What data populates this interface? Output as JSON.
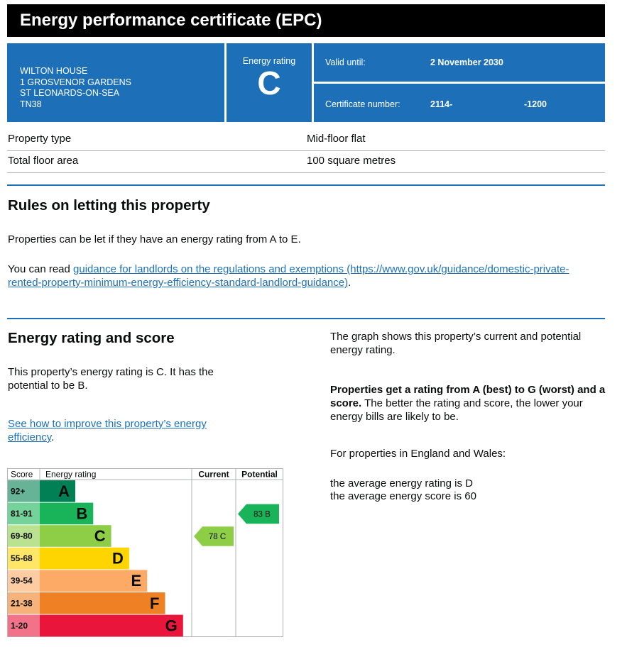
{
  "header": {
    "title": "Energy performance certificate (EPC)"
  },
  "address": {
    "line1": "WILTON HOUSE",
    "line2": "1 GROSVENOR GARDENS",
    "line3": "ST LEONARDS-ON-SEA",
    "line4": "TN38"
  },
  "energy_rating": {
    "label": "Energy rating",
    "value": "C"
  },
  "valid_until": {
    "label": "Valid until:",
    "value": "2 November 2030"
  },
  "certificate": {
    "label": "Certificate number:",
    "value_part1": "2114-",
    "value_part2": "-1200"
  },
  "property": {
    "type_label": "Property type",
    "type_value": "Mid-floor flat",
    "area_label": "Total floor area",
    "area_value": "100 square metres"
  },
  "rules": {
    "heading": "Rules on letting this property",
    "para1": "Properties can be let if they have an energy rating from A to E.",
    "para2_prefix": "You can read ",
    "link": "guidance for landlords on the regulations and exemptions (https://www.gov.uk/guidance/domestic-private-rented-property-minimum-energy-efficiency-standard-landlord-guidance)",
    "para2_suffix": "."
  },
  "rating_section": {
    "heading": "Energy rating and score",
    "para1": "This property’s energy rating is C. It has the potential to be B.",
    "link": "See how to improve this property’s energy efficiency",
    "link_suffix": "."
  },
  "right_col": {
    "para1": "The graph shows this property’s current and potential energy rating.",
    "para2_bold": "Properties get a rating from A (best) to G (worst) and a score.",
    "para2_rest": " The better the rating and score, the lower your energy bills are likely to be.",
    "para3": "For properties in England and Wales:",
    "para4_line1": "the average energy rating is D",
    "para4_line2": "the average energy score is 60"
  },
  "chart_data": {
    "type": "bar",
    "header_score": "Score",
    "header_rating": "Energy rating",
    "header_current": "Current",
    "header_potential": "Potential",
    "bands": [
      {
        "score": "92+",
        "letter": "A",
        "color": "#008054",
        "score_bg": "#66b398"
      },
      {
        "score": "81-91",
        "letter": "B",
        "color": "#19b459",
        "score_bg": "#75d29b"
      },
      {
        "score": "69-80",
        "letter": "C",
        "color": "#8dce46",
        "score_bg": "#bbe290"
      },
      {
        "score": "55-68",
        "letter": "D",
        "color": "#ffd500",
        "score_bg": "#ffe666"
      },
      {
        "score": "39-54",
        "letter": "E",
        "color": "#fcaa65",
        "score_bg": "#fdcca3"
      },
      {
        "score": "21-38",
        "letter": "F",
        "color": "#ef8023",
        "score_bg": "#f5b37b"
      },
      {
        "score": "1-20",
        "letter": "G",
        "color": "#e9153b",
        "score_bg": "#f27389"
      }
    ],
    "current": {
      "score": 78,
      "letter": "C",
      "label": "78 C",
      "color": "#8dce46"
    },
    "potential": {
      "score": 83,
      "letter": "B",
      "label": "83 B",
      "color": "#19b459"
    }
  }
}
